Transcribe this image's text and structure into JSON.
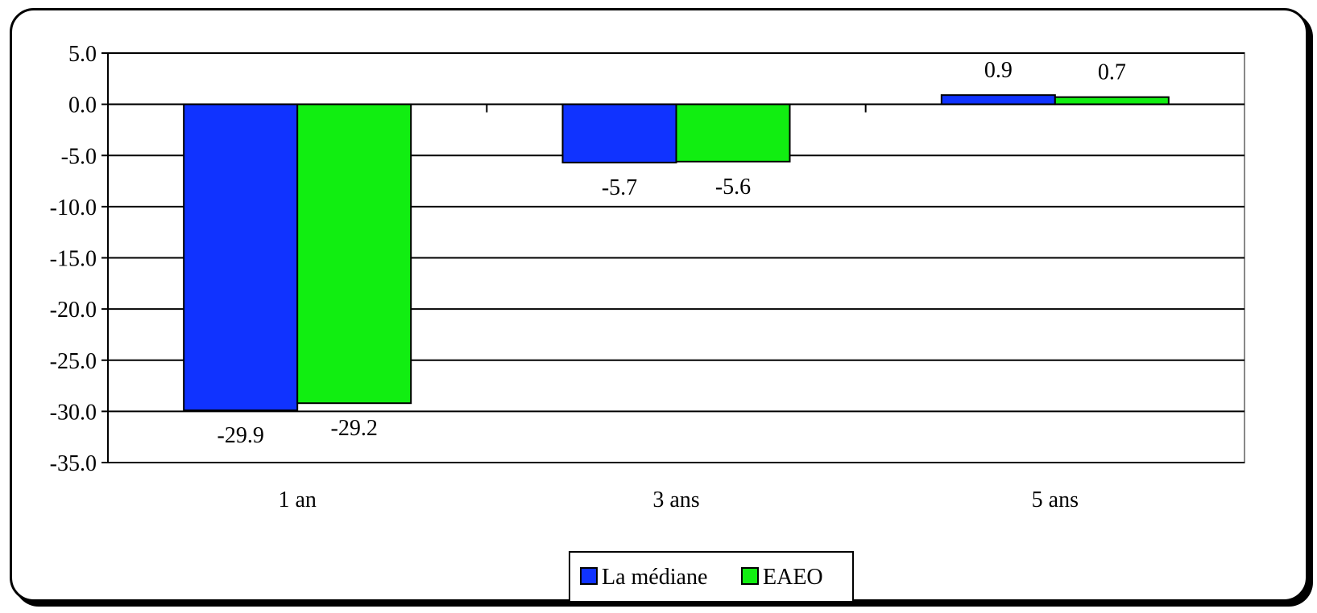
{
  "chart_data": {
    "type": "bar",
    "categories": [
      "1 an",
      "3 ans",
      "5 ans"
    ],
    "series": [
      {
        "name": "La médiane",
        "values": [
          -29.9,
          -5.7,
          0.9
        ],
        "labels": [
          "-29.9",
          "-5.7",
          "0.9"
        ],
        "color": "#1033ff"
      },
      {
        "name": "EAEO",
        "values": [
          -29.2,
          -5.6,
          0.7
        ],
        "labels": [
          "-29.2",
          "-5.6",
          "0.7"
        ],
        "color": "#11ee11"
      }
    ],
    "ylim": [
      -35,
      5
    ],
    "yticks": [
      5,
      0,
      -5,
      -10,
      -15,
      -20,
      -25,
      -30,
      -35
    ],
    "ytick_labels": [
      "5.0",
      "0.0",
      "-5.0",
      "-10.0",
      "-15.0",
      "-20.0",
      "-25.0",
      "-30.0",
      "-35.0"
    ],
    "title": "",
    "xlabel": "",
    "ylabel": "",
    "grid": true,
    "legend": "bottom-center"
  }
}
